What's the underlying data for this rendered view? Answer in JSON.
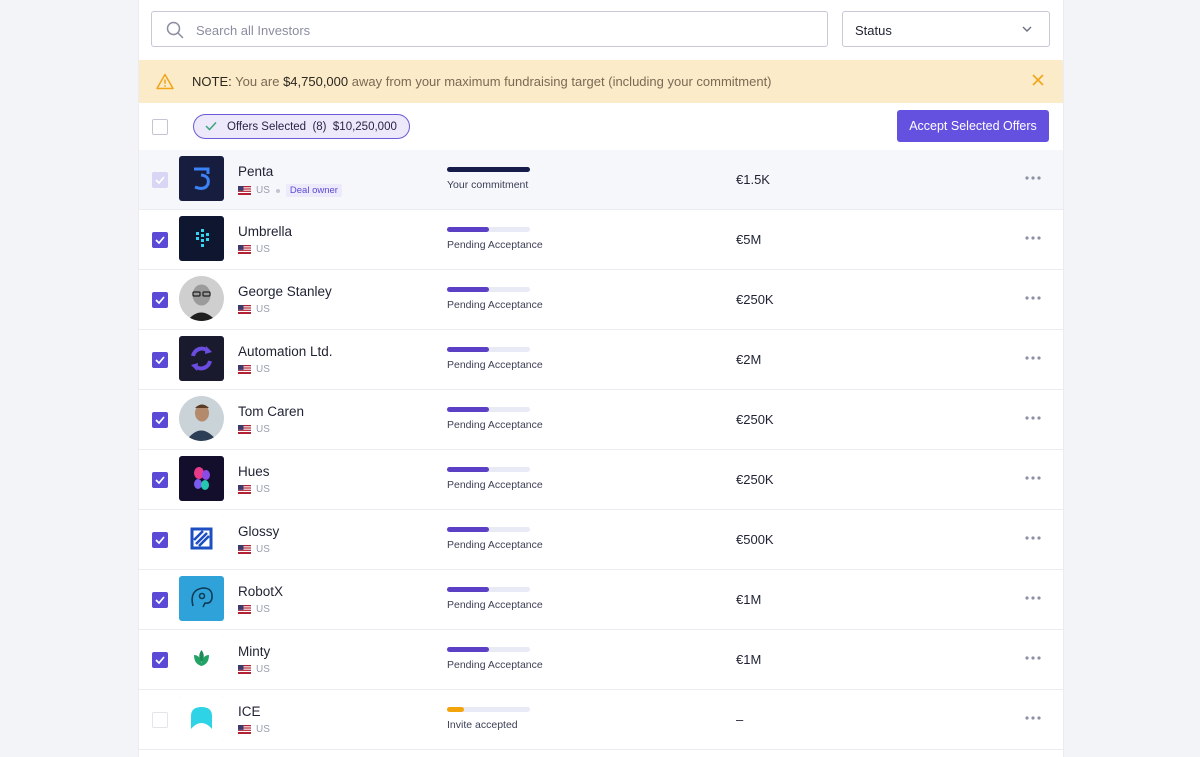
{
  "search": {
    "placeholder": "Search all Investors",
    "value": ""
  },
  "status_filter": {
    "label": "Status"
  },
  "note": {
    "prefix": "NOTE:",
    "text_before": " You are ",
    "amount": "$4,750,000",
    "text_after": " away from your maximum fundraising target (including your commitment)"
  },
  "toolbar": {
    "offers_selected_label": "Offers Selected",
    "offers_selected_count": "(8)",
    "offers_selected_total": "$10,250,000",
    "accept_label": "Accept Selected Offers"
  },
  "colors": {
    "accent": "#5b4ad6",
    "commitment_bar": "#151c4a",
    "pending_bar": "#5b3fc4",
    "invite_bar": "#f4a40b",
    "note_bg": "#fcebc8",
    "warning": "#f0a51a"
  },
  "investors": [
    {
      "name": "Penta",
      "country": "US",
      "badge": "Deal owner",
      "status": "Your commitment",
      "progress": 1.0,
      "bar_color": "#151c4a",
      "amount": "€1.5K",
      "checkbox": "dim",
      "logo": "penta-logo-icon"
    },
    {
      "name": "Umbrella",
      "country": "US",
      "status": "Pending Acceptance",
      "progress": 0.5,
      "bar_color": "#5b3fc4",
      "amount": "€5M",
      "checkbox": "checked",
      "logo": "umbrella-logo-icon"
    },
    {
      "name": "George Stanley",
      "country": "US",
      "status": "Pending Acceptance",
      "progress": 0.5,
      "bar_color": "#5b3fc4",
      "amount": "€250K",
      "checkbox": "checked",
      "logo": "avatar-photo"
    },
    {
      "name": "Automation Ltd.",
      "country": "US",
      "status": "Pending Acceptance",
      "progress": 0.5,
      "bar_color": "#5b3fc4",
      "amount": "€2M",
      "checkbox": "checked",
      "logo": "automation-logo-icon"
    },
    {
      "name": "Tom Caren",
      "country": "US",
      "status": "Pending Acceptance",
      "progress": 0.5,
      "bar_color": "#5b3fc4",
      "amount": "€250K",
      "checkbox": "checked",
      "logo": "avatar-photo"
    },
    {
      "name": "Hues",
      "country": "US",
      "status": "Pending Acceptance",
      "progress": 0.5,
      "bar_color": "#5b3fc4",
      "amount": "€250K",
      "checkbox": "checked",
      "logo": "hues-logo-icon"
    },
    {
      "name": "Glossy",
      "country": "US",
      "status": "Pending Acceptance",
      "progress": 0.5,
      "bar_color": "#5b3fc4",
      "amount": "€500K",
      "checkbox": "checked",
      "logo": "glossy-logo-icon"
    },
    {
      "name": "RobotX",
      "country": "US",
      "status": "Pending Acceptance",
      "progress": 0.5,
      "bar_color": "#5b3fc4",
      "amount": "€1M",
      "checkbox": "checked",
      "logo": "robotx-logo-icon"
    },
    {
      "name": "Minty",
      "country": "US",
      "status": "Pending Acceptance",
      "progress": 0.5,
      "bar_color": "#5b3fc4",
      "amount": "€1M",
      "checkbox": "checked",
      "logo": "minty-logo-icon"
    },
    {
      "name": "ICE",
      "country": "US",
      "status": "Invite accepted",
      "progress": 0.2,
      "bar_color": "#f4a40b",
      "amount": "–",
      "checkbox": "faint",
      "logo": "ice-logo-icon"
    }
  ]
}
